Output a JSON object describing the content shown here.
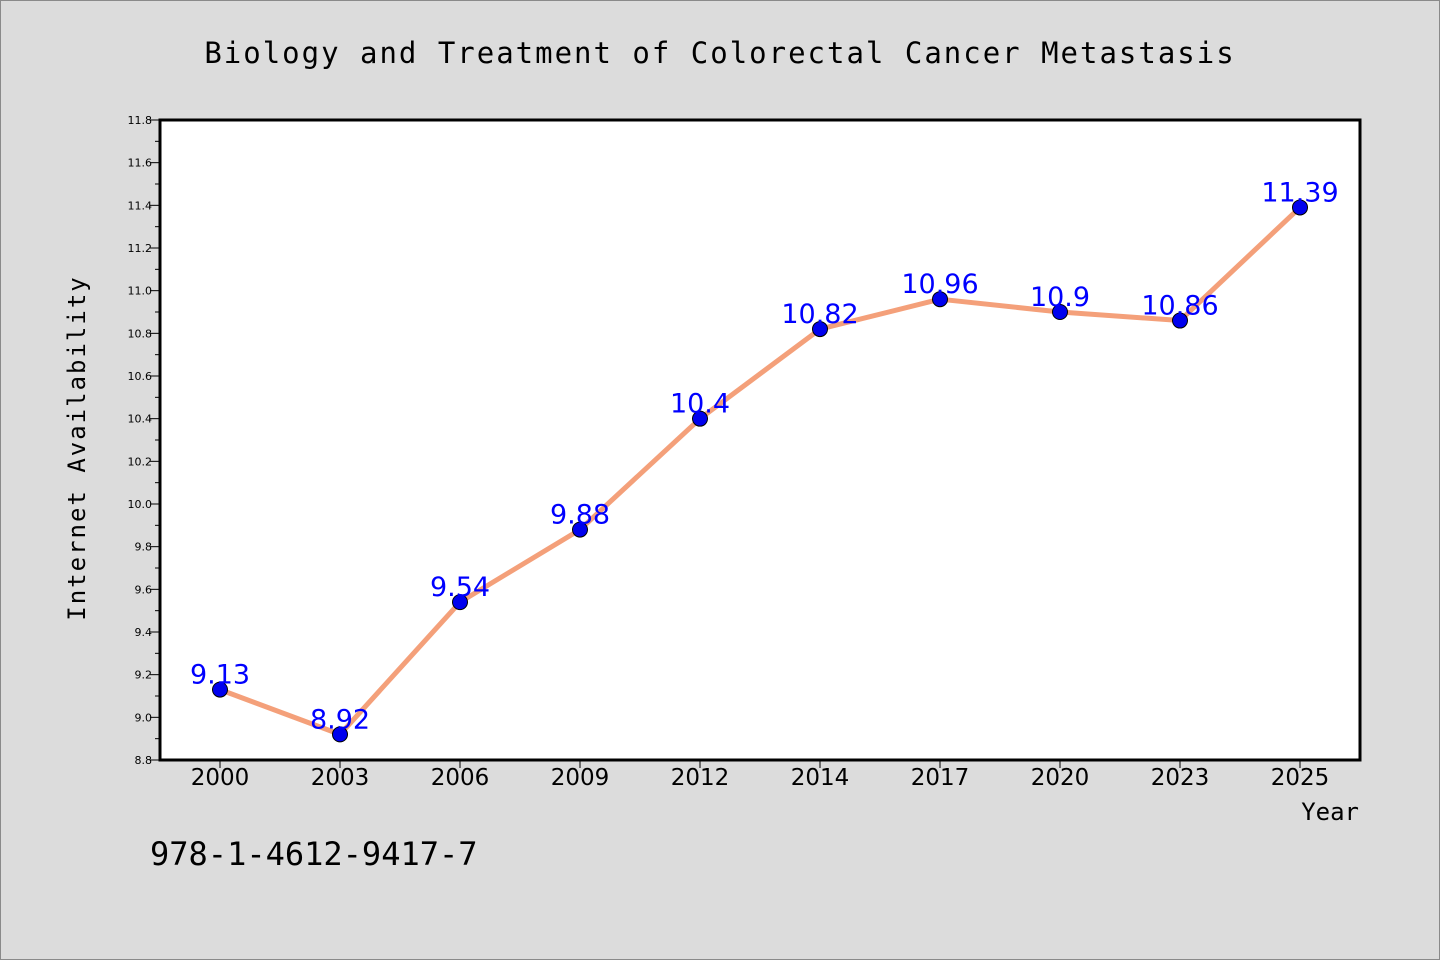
{
  "chart_data": {
    "type": "line",
    "title": "Biology and Treatment of Colorectal Cancer Metastasis",
    "xlabel": "Year",
    "ylabel": "Internet Availability",
    "categories": [
      "2000",
      "2003",
      "2006",
      "2009",
      "2012",
      "2014",
      "2017",
      "2020",
      "2023",
      "2025"
    ],
    "values": [
      9.13,
      8.92,
      9.54,
      9.88,
      10.4,
      10.82,
      10.96,
      10.9,
      10.86,
      11.39
    ],
    "data_labels": [
      "9.13",
      "8.92",
      "9.54",
      "9.88",
      "10.4",
      "10.82",
      "10.96",
      "10.9",
      "10.86",
      "11.39"
    ],
    "ylim": [
      8.8,
      11.8
    ],
    "yticks": [
      "8.8",
      "9.0",
      "9.2",
      "9.4",
      "9.6",
      "9.8",
      "10.0",
      "10.2",
      "10.4",
      "10.6",
      "10.8",
      "11.0",
      "11.2",
      "11.4",
      "11.6",
      "11.8"
    ],
    "grid": false,
    "line_color": "#f4a07a",
    "marker_color": "#0000ee",
    "label_color": "#0000ff"
  },
  "footer": {
    "isbn": "978-1-4612-9417-7"
  }
}
